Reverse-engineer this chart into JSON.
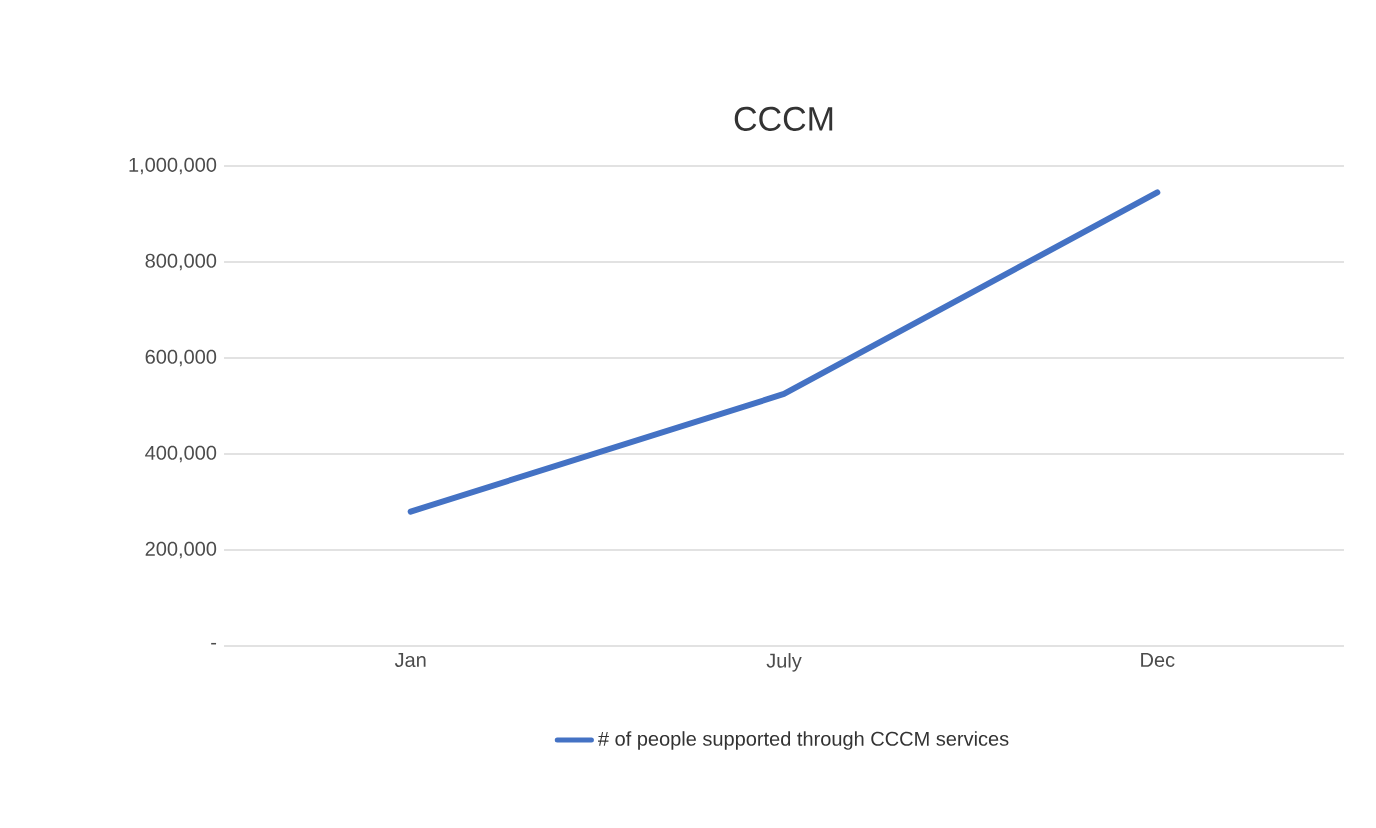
{
  "chart_data": {
    "type": "line",
    "title": "CCCM",
    "categories": [
      "Jan",
      "July",
      "Dec"
    ],
    "series": [
      {
        "name": "# of people supported through CCCM services",
        "color": "#4472c4",
        "values": [
          280000,
          525000,
          945000
        ]
      }
    ],
    "ylim": [
      0,
      1000000
    ],
    "yticks": [
      {
        "value": 0,
        "label": "-"
      },
      {
        "value": 200000,
        "label": "200,000"
      },
      {
        "value": 400000,
        "label": "400,000"
      },
      {
        "value": 600000,
        "label": "600,000"
      },
      {
        "value": 800000,
        "label": "800,000"
      },
      {
        "value": 1000000,
        "label": "1,000,000"
      }
    ],
    "grid": "y",
    "legend": "bottom",
    "marker": "none",
    "line_style": "solid"
  }
}
